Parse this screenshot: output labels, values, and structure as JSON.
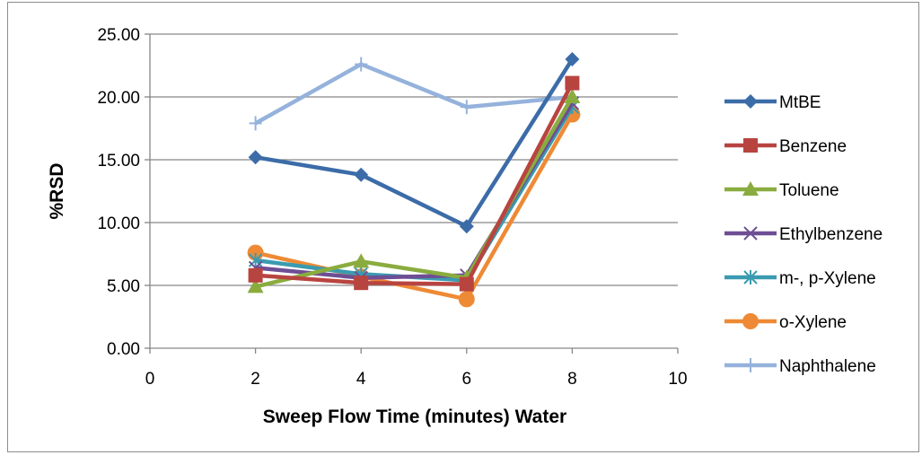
{
  "chart_data": {
    "type": "line",
    "title": "",
    "xlabel": "Sweep Flow Time (minutes) Water",
    "ylabel": "%RSD",
    "xlim": [
      0,
      10
    ],
    "ylim": [
      0,
      25
    ],
    "x_ticks": [
      "0",
      "2",
      "4",
      "6",
      "8",
      "10"
    ],
    "y_ticks": [
      "0.00",
      "5.00",
      "10.00",
      "15.00",
      "20.00",
      "25.00"
    ],
    "grid": "horizontal",
    "legend_position": "right",
    "x": [
      2,
      4,
      6,
      8
    ],
    "series": [
      {
        "name": "MtBE",
        "color": "#3c6ca8",
        "marker": "diamond",
        "values": [
          15.2,
          13.8,
          9.7,
          23.0
        ]
      },
      {
        "name": "Benzene",
        "color": "#b84440",
        "marker": "square",
        "values": [
          5.8,
          5.2,
          5.1,
          21.1
        ]
      },
      {
        "name": "Toluene",
        "color": "#8aac3e",
        "marker": "triangle",
        "values": [
          4.9,
          6.9,
          5.6,
          20.0
        ]
      },
      {
        "name": "Ethylbenzene",
        "color": "#6e4e94",
        "marker": "x",
        "values": [
          6.4,
          5.6,
          5.8,
          19.5
        ]
      },
      {
        "name": "m-, p-Xylene",
        "color": "#3a9bb0",
        "marker": "asterisk",
        "values": [
          7.0,
          5.9,
          5.4,
          19.2
        ]
      },
      {
        "name": "o-Xylene",
        "color": "#ee8a35",
        "marker": "circle",
        "values": [
          7.6,
          5.7,
          3.9,
          18.6
        ]
      },
      {
        "name": "Naphthalene",
        "color": "#95b2dc",
        "marker": "plus",
        "values": [
          17.9,
          22.6,
          19.2,
          20.0
        ]
      }
    ]
  }
}
